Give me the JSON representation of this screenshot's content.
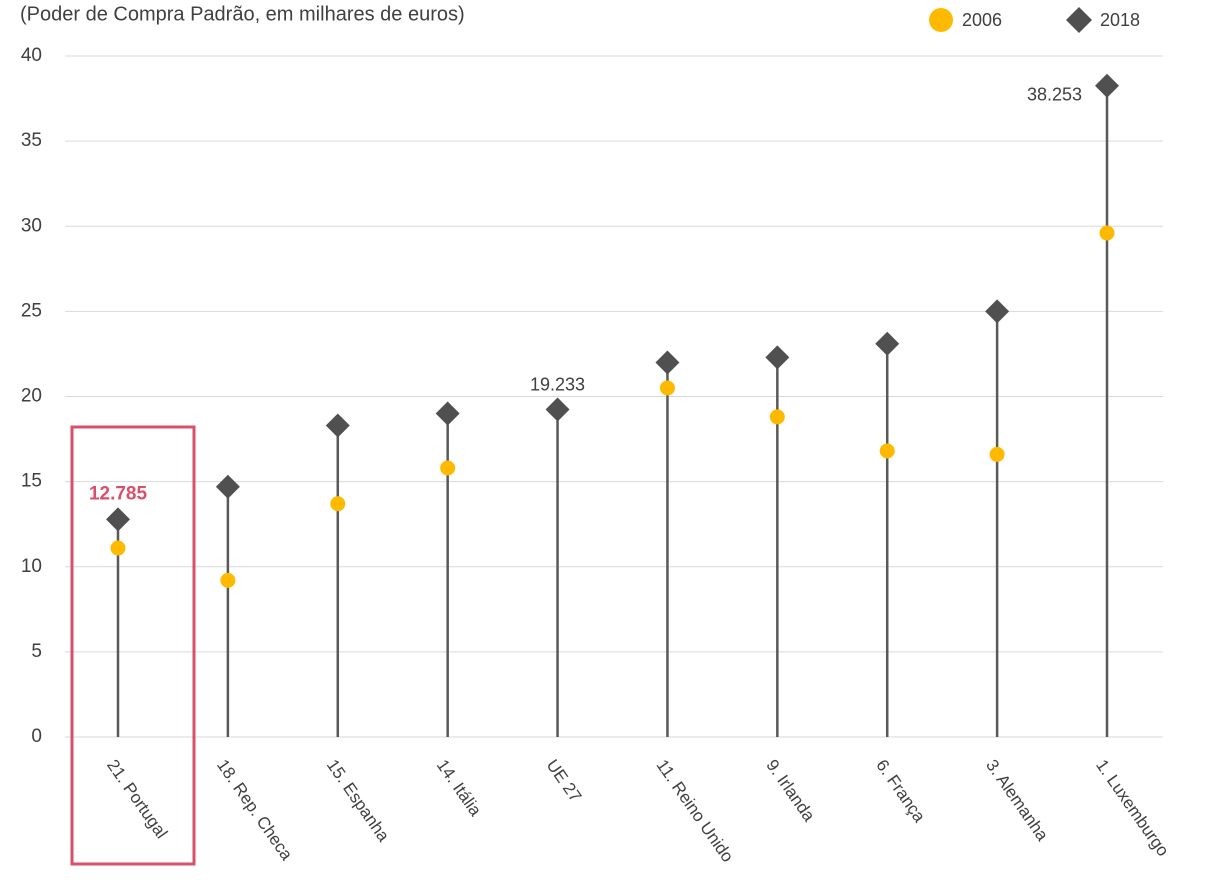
{
  "chart_data": {
    "type": "lollipop",
    "subtitle": "(Poder de Compra Padrão, em milhares de euros)",
    "categories": [
      "21. Portugal",
      "18. Rep. Checa",
      "15. Espanha",
      "14. Itália",
      "UE 27",
      "11. Reino Unido",
      "9. Irlanda",
      "6. França",
      "3. Alemanha",
      "1. Luxemburgo"
    ],
    "series": [
      {
        "name": "2006",
        "color": "#ffb900",
        "marker": "circle",
        "values": [
          11.1,
          9.2,
          13.7,
          15.8,
          null,
          20.5,
          18.8,
          16.8,
          16.6,
          29.6
        ]
      },
      {
        "name": "2018",
        "color": "#505050",
        "marker": "diamond",
        "values": [
          12.785,
          14.7,
          18.3,
          19.0,
          19.233,
          22.0,
          22.3,
          23.1,
          25.0,
          38.253
        ],
        "value_labels": [
          "12.785",
          null,
          null,
          null,
          "19.233",
          null,
          null,
          null,
          null,
          "38.253"
        ]
      }
    ],
    "ylim": [
      0,
      40
    ],
    "yticks": [
      0,
      5,
      10,
      15,
      20,
      25,
      30,
      35,
      40
    ],
    "grid": true,
    "legend": "top-right",
    "highlight_color": "#d9506a"
  }
}
